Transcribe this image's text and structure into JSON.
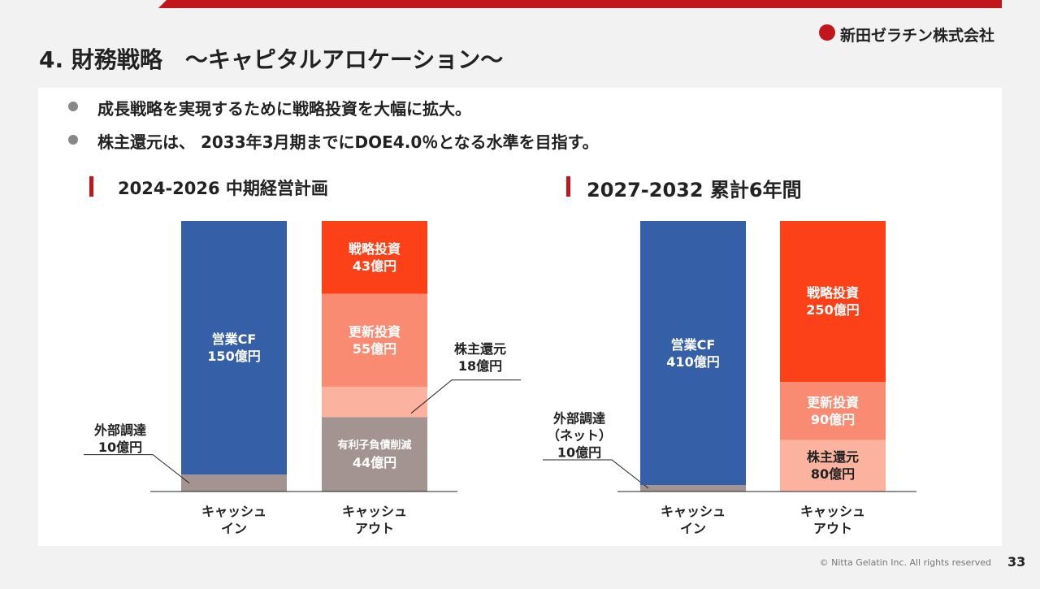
{
  "header": {
    "title": "4. 財務戦略　～キャピタルアロケーション～",
    "company": "新田ゼラチン株式会社"
  },
  "bullets": [
    "成長戦略を実現するために戦略投資を大幅に拡大。",
    "株主還元は、 2033年3月期までにDOE4.0％となる水準を目指す。"
  ],
  "chart_data": [
    {
      "type": "stacked-bar",
      "title": "2024-2026 中期経営計画",
      "categories": [
        "キャッシュ\nイン",
        "キャッシュ\nアウト"
      ],
      "series": [
        {
          "name": "外部調達",
          "color": "#a39391",
          "values": [
            10,
            null
          ],
          "value_labels": [
            "10億円",
            null
          ]
        },
        {
          "name": "営業CF",
          "color": "#3560a8",
          "values": [
            150,
            null
          ],
          "value_labels": [
            "150億円",
            null
          ]
        },
        {
          "name": "有利子負債削減",
          "color": "#a39391",
          "values": [
            null,
            44
          ],
          "value_labels": [
            null,
            "44億円"
          ]
        },
        {
          "name": "株主還元",
          "color": "#fbb3a0",
          "values": [
            null,
            18
          ],
          "value_labels": [
            null,
            "18億円"
          ]
        },
        {
          "name": "更新投資",
          "color": "#f98b73",
          "values": [
            null,
            55
          ],
          "value_labels": [
            null,
            "55億円"
          ]
        },
        {
          "name": "戦略投資",
          "color": "#fc4119",
          "values": [
            null,
            43
          ],
          "value_labels": [
            null,
            "43億円"
          ]
        }
      ]
    },
    {
      "type": "stacked-bar",
      "title": "2027-2032 累計6年間",
      "categories": [
        "キャッシュ\nイン",
        "キャッシュ\nアウト"
      ],
      "series": [
        {
          "name": "外部調達\n（ネット）",
          "color": "#a39391",
          "values": [
            10,
            null
          ],
          "value_labels": [
            "10億円",
            null
          ]
        },
        {
          "name": "営業CF",
          "color": "#3560a8",
          "values": [
            410,
            null
          ],
          "value_labels": [
            "410億円",
            null
          ]
        },
        {
          "name": "株主還元",
          "color": "#fbb3a0",
          "values": [
            null,
            80
          ],
          "value_labels": [
            null,
            "80億円"
          ]
        },
        {
          "name": "更新投資",
          "color": "#f98b73",
          "values": [
            null,
            90
          ],
          "value_labels": [
            null,
            "90億円"
          ]
        },
        {
          "name": "戦略投資",
          "color": "#fc4119",
          "values": [
            null,
            250
          ],
          "value_labels": [
            null,
            "250億円"
          ]
        }
      ]
    }
  ],
  "footer": {
    "copyright": "© Nitta Gelatin Inc. All rights reserved",
    "page": "33"
  }
}
